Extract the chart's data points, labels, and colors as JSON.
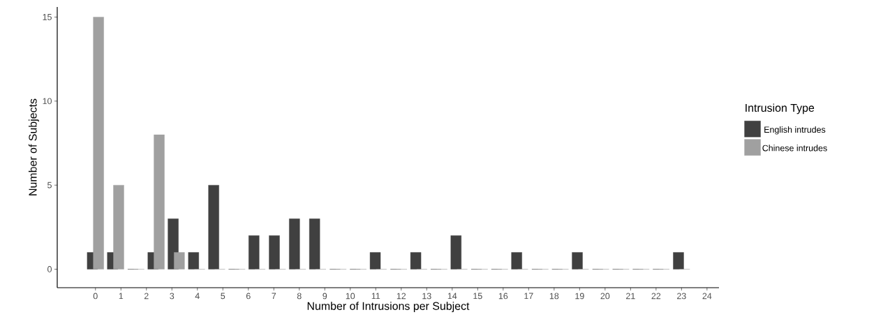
{
  "chart_data": {
    "type": "bar",
    "xlabel": "Number of Intrusions per Subject",
    "ylabel": "Number of Subjects",
    "legend_title": "Intrusion Type",
    "legend": "right",
    "xlim": [
      -1.5,
      24.47
    ],
    "xticks": [
      0,
      1,
      2,
      3,
      4,
      5,
      6,
      7,
      8,
      9,
      10,
      11,
      12,
      13,
      14,
      15,
      16,
      17,
      18,
      19,
      20,
      21,
      22,
      23,
      24
    ],
    "ylim": [
      -1.1,
      15.6
    ],
    "yticks": [
      0,
      5,
      10,
      15
    ],
    "grid": false,
    "series": [
      {
        "name": "English intrudes",
        "color": "#404040",
        "x": [
          -0.12,
          0.67,
          1.47,
          2.26,
          3.05,
          3.85,
          4.64,
          5.43,
          6.22,
          7.02,
          7.81,
          8.6,
          9.4,
          10.19,
          10.98,
          11.78,
          12.57,
          13.36,
          14.15,
          14.95,
          15.74,
          16.53,
          17.33,
          18.12,
          18.91,
          19.71,
          20.5,
          21.29,
          22.08,
          22.88
        ],
        "values": [
          1,
          1,
          0,
          1,
          3,
          1,
          5,
          0,
          2,
          2,
          3,
          3,
          0,
          0,
          1,
          0,
          1,
          0,
          2,
          0,
          0,
          1,
          0,
          0,
          1,
          0,
          0,
          0,
          0,
          1
        ]
      },
      {
        "name": "Chinese intrudes",
        "color": "#a0a0a0",
        "x": [
          0.12,
          0.91,
          1.71,
          2.5,
          3.29,
          4.09,
          4.88,
          5.67,
          6.46,
          7.26,
          8.05,
          8.84,
          9.64,
          10.43,
          11.22,
          12.02,
          12.81,
          13.6,
          14.39,
          15.19,
          15.98,
          16.77,
          17.57,
          18.36,
          19.15,
          19.95,
          20.74,
          21.53,
          22.32,
          23.12
        ],
        "values": [
          15,
          5,
          0,
          8,
          1,
          0,
          0,
          0,
          0,
          0,
          0,
          0,
          0,
          0,
          0,
          0,
          0,
          0,
          0,
          0,
          0,
          0,
          0,
          0,
          0,
          0,
          0,
          0,
          0,
          0
        ]
      }
    ]
  }
}
